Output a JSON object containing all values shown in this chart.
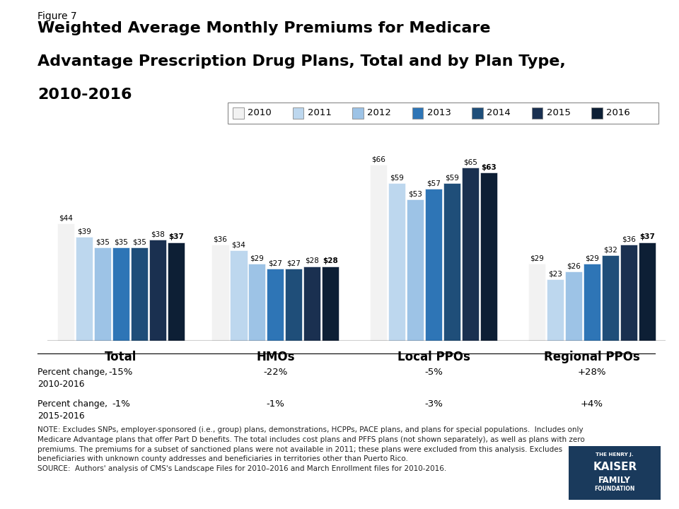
{
  "categories": [
    "Total",
    "HMOs",
    "Local PPOs",
    "Regional PPOs"
  ],
  "years": [
    "2010",
    "2011",
    "2012",
    "2013",
    "2014",
    "2015",
    "2016"
  ],
  "values": {
    "Total": [
      44,
      39,
      35,
      35,
      35,
      38,
      37
    ],
    "HMOs": [
      36,
      34,
      29,
      27,
      27,
      28,
      28
    ],
    "Local PPOs": [
      66,
      59,
      53,
      57,
      59,
      65,
      63
    ],
    "Regional PPOs": [
      29,
      23,
      26,
      29,
      32,
      36,
      37
    ]
  },
  "colors": [
    "#f2f2f2",
    "#bdd7ee",
    "#9dc3e6",
    "#2e75b6",
    "#1f4e79",
    "#1a3050",
    "#0d1f35"
  ],
  "percent_change_2010_2016": [
    "-15%",
    "-22%",
    "-5%",
    "+28%"
  ],
  "percent_change_2015_2016": [
    "-1%",
    "-1%",
    "-3%",
    "+4%"
  ],
  "figure_label": "Figure 7",
  "title_line1": "Weighted Average Monthly Premiums for Medicare",
  "title_line2": "Advantage Prescription Drug Plans, Total and by Plan Type,",
  "title_line3": "2010-2016",
  "note_line1": "NOTE: Excludes SNPs, employer-sponsored (i.e., group) plans, demonstrations, HCPPs, PACE plans, and plans for special populations.  Includes only",
  "note_line2": "Medicare Advantage plans that offer Part D benefits. The total includes cost plans and PFFS plans (not shown separately), as well as plans with zero",
  "note_line3": "premiums. The premiums for a subset of sanctioned plans were not available in 2011; these plans were excluded from this analysis. Excludes",
  "note_line4": "beneficiaries with unknown county addresses and beneficiaries in territories other than Puerto Rico.",
  "note_line5": "SOURCE:  Authors' analysis of CMS's Landscape Files for 2010–2016 and March Enrollment files for 2010-2016.",
  "ylim": [
    0,
    80
  ],
  "bar_width": 0.095,
  "group_centers": [
    0.38,
    1.18,
    2.0,
    2.82
  ]
}
